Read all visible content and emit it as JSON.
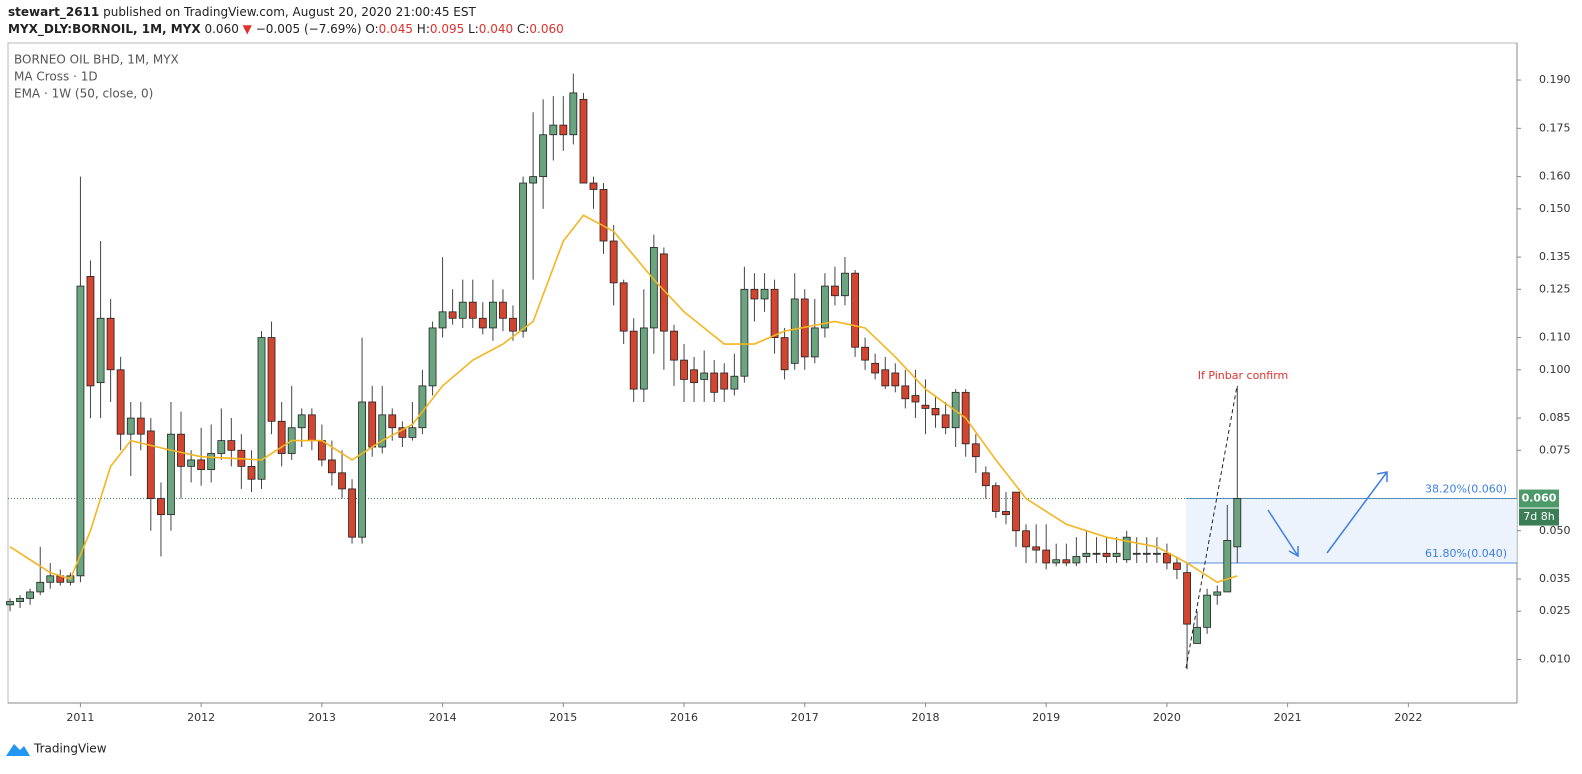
{
  "header": {
    "author": "stewart_2611",
    "published": "published on TradingView.com, August 20, 2020 21:00:45 EST",
    "symbol": "MYX_DLY:BORNOIL, 1M, MYX",
    "last": "0.060",
    "arrow": "▼",
    "change": "−0.005 (−7.69%)",
    "ohlc": [
      {
        "key": "O:",
        "value": "0.045"
      },
      {
        "key": "H:",
        "value": "0.095"
      },
      {
        "key": "L:",
        "value": "0.040"
      },
      {
        "key": "C:",
        "value": "0.060"
      }
    ]
  },
  "footer": {
    "brand": "TradingView"
  },
  "chart_data": {
    "type": "candlestick",
    "title": "BORNEO OIL BHD, 1M, MYX",
    "indicators": [
      "MA Cross · 1D"
    ],
    "up_color": "#6aa57f",
    "down_color": "#d4452f",
    "xlim": [
      2010.4,
      2022.9
    ],
    "xticks": [
      2011,
      2012,
      2013,
      2014,
      2015,
      2016,
      2017,
      2018,
      2019,
      2020,
      2021,
      2022
    ],
    "ylim": [
      -0.0035,
      0.2015
    ],
    "yticks": [
      {
        "value": 0.01,
        "label": "0.010"
      },
      {
        "value": 0.025,
        "label": "0.025"
      },
      {
        "value": 0.035,
        "label": "0.035"
      },
      {
        "value": 0.05,
        "label": "0.050"
      },
      {
        "value": 0.075,
        "label": "0.075"
      },
      {
        "value": 0.085,
        "label": "0.085"
      },
      {
        "value": 0.1,
        "label": "0.100"
      },
      {
        "value": 0.11,
        "label": "0.110"
      },
      {
        "value": 0.125,
        "label": "0.125"
      },
      {
        "value": 0.135,
        "label": "0.135"
      },
      {
        "value": 0.15,
        "label": "0.150"
      },
      {
        "value": 0.16,
        "label": "0.160"
      },
      {
        "value": 0.175,
        "label": "0.175"
      },
      {
        "value": 0.19,
        "label": "0.190"
      }
    ],
    "grid": false,
    "last_price": {
      "value": 0.06,
      "label": "0.060"
    },
    "countdown": "7d 8h",
    "fib_levels": [
      {
        "value": 0.06,
        "label": "38.20%(0.060)"
      },
      {
        "value": 0.04,
        "label": "61.80%(0.040)"
      }
    ],
    "annotation": "If Pinbar confirm",
    "x": [
      2010.417,
      2010.5,
      2010.583,
      2010.667,
      2010.75,
      2010.833,
      2010.917,
      2011,
      2011.083,
      2011.167,
      2011.25,
      2011.333,
      2011.417,
      2011.5,
      2011.583,
      2011.667,
      2011.75,
      2011.833,
      2011.917,
      2012,
      2012.083,
      2012.167,
      2012.25,
      2012.333,
      2012.417,
      2012.5,
      2012.583,
      2012.667,
      2012.75,
      2012.833,
      2012.917,
      2013,
      2013.083,
      2013.167,
      2013.25,
      2013.333,
      2013.417,
      2013.5,
      2013.583,
      2013.667,
      2013.75,
      2013.833,
      2013.917,
      2014,
      2014.083,
      2014.167,
      2014.25,
      2014.333,
      2014.417,
      2014.5,
      2014.583,
      2014.667,
      2014.75,
      2014.833,
      2014.917,
      2015,
      2015.083,
      2015.167,
      2015.25,
      2015.333,
      2015.417,
      2015.5,
      2015.583,
      2015.667,
      2015.75,
      2015.833,
      2015.917,
      2016,
      2016.083,
      2016.167,
      2016.25,
      2016.333,
      2016.417,
      2016.5,
      2016.583,
      2016.667,
      2016.75,
      2016.833,
      2016.917,
      2017,
      2017.083,
      2017.167,
      2017.25,
      2017.333,
      2017.417,
      2017.5,
      2017.583,
      2017.667,
      2017.75,
      2017.833,
      2017.917,
      2018,
      2018.083,
      2018.167,
      2018.25,
      2018.333,
      2018.417,
      2018.5,
      2018.583,
      2018.667,
      2018.75,
      2018.833,
      2018.917,
      2019,
      2019.083,
      2019.167,
      2019.25,
      2019.333,
      2019.417,
      2019.5,
      2019.583,
      2019.667,
      2019.75,
      2019.833,
      2019.917,
      2020,
      2020.083,
      2020.167,
      2020.25,
      2020.333,
      2020.417,
      2020.5,
      2020.583
    ],
    "open": [
      0.027,
      0.028,
      0.029,
      0.031,
      0.034,
      0.036,
      0.034,
      0.036,
      0.129,
      0.096,
      0.116,
      0.1,
      0.08,
      0.085,
      0.081,
      0.06,
      0.055,
      0.08,
      0.07,
      0.072,
      0.069,
      0.074,
      0.078,
      0.075,
      0.07,
      0.066,
      0.11,
      0.084,
      0.074,
      0.082,
      0.086,
      0.078,
      0.072,
      0.068,
      0.063,
      0.048,
      0.09,
      0.076,
      0.086,
      0.082,
      0.079,
      0.082,
      0.095,
      0.113,
      0.118,
      0.116,
      0.121,
      0.116,
      0.113,
      0.121,
      0.116,
      0.112,
      0.158,
      0.16,
      0.173,
      0.176,
      0.173,
      0.184,
      0.158,
      0.156,
      0.14,
      0.127,
      0.112,
      0.094,
      0.113,
      0.136,
      0.112,
      0.103,
      0.1,
      0.097,
      0.099,
      0.099,
      0.094,
      0.098,
      0.125,
      0.122,
      0.125,
      0.11,
      0.102,
      0.122,
      0.104,
      0.113,
      0.126,
      0.123,
      0.13,
      0.107,
      0.102,
      0.1,
      0.099,
      0.095,
      0.092,
      0.089,
      0.088,
      0.086,
      0.082,
      0.093,
      0.077,
      0.068,
      0.064,
      0.056,
      0.062,
      0.05,
      0.045,
      0.044,
      0.04,
      0.041,
      0.04,
      0.042,
      0.043,
      0.043,
      0.042,
      0.041,
      0.043,
      0.043,
      0.043,
      0.043,
      0.04,
      0.037,
      0.015,
      0.02,
      0.03,
      0.031,
      0.045
    ],
    "high": [
      0.029,
      0.03,
      0.032,
      0.045,
      0.04,
      0.038,
      0.037,
      0.16,
      0.134,
      0.14,
      0.122,
      0.104,
      0.09,
      0.09,
      0.085,
      0.065,
      0.09,
      0.087,
      0.075,
      0.082,
      0.083,
      0.088,
      0.085,
      0.08,
      0.075,
      0.112,
      0.115,
      0.09,
      0.095,
      0.088,
      0.088,
      0.083,
      0.078,
      0.075,
      0.066,
      0.11,
      0.095,
      0.095,
      0.088,
      0.084,
      0.09,
      0.1,
      0.115,
      0.135,
      0.125,
      0.128,
      0.128,
      0.121,
      0.128,
      0.125,
      0.12,
      0.16,
      0.18,
      0.184,
      0.185,
      0.185,
      0.192,
      0.186,
      0.16,
      0.158,
      0.145,
      0.128,
      0.116,
      0.125,
      0.142,
      0.138,
      0.114,
      0.108,
      0.104,
      0.106,
      0.103,
      0.102,
      0.105,
      0.132,
      0.13,
      0.13,
      0.128,
      0.113,
      0.13,
      0.125,
      0.122,
      0.13,
      0.132,
      0.135,
      0.131,
      0.11,
      0.105,
      0.104,
      0.102,
      0.1,
      0.1,
      0.097,
      0.092,
      0.09,
      0.094,
      0.094,
      0.08,
      0.07,
      0.065,
      0.062,
      0.062,
      0.052,
      0.052,
      0.052,
      0.046,
      0.046,
      0.048,
      0.05,
      0.048,
      0.048,
      0.048,
      0.05,
      0.048,
      0.048,
      0.048,
      0.046,
      0.042,
      0.04,
      0.025,
      0.032,
      0.033,
      0.058,
      0.095
    ],
    "low": [
      0.025,
      0.026,
      0.027,
      0.03,
      0.032,
      0.033,
      0.033,
      0.034,
      0.085,
      0.085,
      0.09,
      0.075,
      0.067,
      0.075,
      0.05,
      0.042,
      0.05,
      0.06,
      0.065,
      0.064,
      0.065,
      0.072,
      0.07,
      0.063,
      0.062,
      0.063,
      0.08,
      0.07,
      0.072,
      0.076,
      0.075,
      0.07,
      0.064,
      0.06,
      0.046,
      0.046,
      0.073,
      0.074,
      0.078,
      0.076,
      0.078,
      0.08,
      0.092,
      0.11,
      0.114,
      0.113,
      0.113,
      0.111,
      0.109,
      0.112,
      0.109,
      0.11,
      0.128,
      0.15,
      0.165,
      0.168,
      0.17,
      0.158,
      0.15,
      0.136,
      0.12,
      0.108,
      0.09,
      0.09,
      0.105,
      0.1,
      0.095,
      0.09,
      0.09,
      0.09,
      0.09,
      0.09,
      0.092,
      0.096,
      0.115,
      0.118,
      0.105,
      0.097,
      0.1,
      0.1,
      0.102,
      0.11,
      0.12,
      0.12,
      0.104,
      0.1,
      0.097,
      0.094,
      0.093,
      0.088,
      0.085,
      0.08,
      0.082,
      0.08,
      0.076,
      0.073,
      0.068,
      0.06,
      0.054,
      0.052,
      0.045,
      0.04,
      0.04,
      0.038,
      0.039,
      0.039,
      0.039,
      0.04,
      0.04,
      0.04,
      0.04,
      0.04,
      0.04,
      0.04,
      0.04,
      0.038,
      0.035,
      0.007,
      0.015,
      0.018,
      0.027,
      0.031,
      0.04
    ],
    "close": [
      0.028,
      0.029,
      0.031,
      0.034,
      0.036,
      0.034,
      0.036,
      0.126,
      0.095,
      0.116,
      0.1,
      0.08,
      0.085,
      0.08,
      0.06,
      0.055,
      0.08,
      0.07,
      0.072,
      0.069,
      0.074,
      0.078,
      0.075,
      0.07,
      0.066,
      0.11,
      0.084,
      0.074,
      0.082,
      0.086,
      0.078,
      0.072,
      0.068,
      0.063,
      0.048,
      0.09,
      0.076,
      0.086,
      0.082,
      0.079,
      0.082,
      0.095,
      0.113,
      0.118,
      0.116,
      0.121,
      0.116,
      0.113,
      0.121,
      0.116,
      0.112,
      0.158,
      0.16,
      0.173,
      0.176,
      0.173,
      0.186,
      0.158,
      0.156,
      0.14,
      0.127,
      0.112,
      0.094,
      0.113,
      0.138,
      0.112,
      0.103,
      0.097,
      0.096,
      0.099,
      0.093,
      0.094,
      0.098,
      0.125,
      0.122,
      0.125,
      0.11,
      0.1,
      0.122,
      0.104,
      0.113,
      0.126,
      0.123,
      0.13,
      0.107,
      0.103,
      0.099,
      0.095,
      0.095,
      0.091,
      0.09,
      0.088,
      0.086,
      0.082,
      0.093,
      0.077,
      0.073,
      0.064,
      0.056,
      0.055,
      0.05,
      0.045,
      0.044,
      0.04,
      0.041,
      0.04,
      0.042,
      0.043,
      0.043,
      0.042,
      0.043,
      0.048,
      0.043,
      0.043,
      0.043,
      0.04,
      0.038,
      0.021,
      0.02,
      0.03,
      0.031,
      0.047,
      0.06
    ],
    "ema": {
      "name": "EMA · 1W (50, close, 0)",
      "color": "#f5b51f",
      "x": [
        2010.417,
        2010.75,
        2010.917,
        2011.083,
        2011.25,
        2011.417,
        2011.75,
        2012,
        2012.5,
        2012.75,
        2013,
        2013.25,
        2013.5,
        2013.75,
        2014,
        2014.25,
        2014.5,
        2014.75,
        2015,
        2015.167,
        2015.417,
        2015.75,
        2016,
        2016.333,
        2016.583,
        2016.833,
        2017.25,
        2017.5,
        2017.75,
        2018,
        2018.333,
        2018.583,
        2018.833,
        2019.167,
        2019.5,
        2019.917,
        2020.167,
        2020.417,
        2020.583
      ],
      "values": [
        0.045,
        0.037,
        0.035,
        0.05,
        0.07,
        0.078,
        0.075,
        0.073,
        0.072,
        0.078,
        0.078,
        0.072,
        0.078,
        0.083,
        0.095,
        0.103,
        0.108,
        0.115,
        0.14,
        0.148,
        0.143,
        0.128,
        0.118,
        0.108,
        0.108,
        0.112,
        0.115,
        0.113,
        0.104,
        0.094,
        0.085,
        0.072,
        0.06,
        0.052,
        0.048,
        0.045,
        0.04,
        0.034,
        0.036
      ]
    }
  }
}
